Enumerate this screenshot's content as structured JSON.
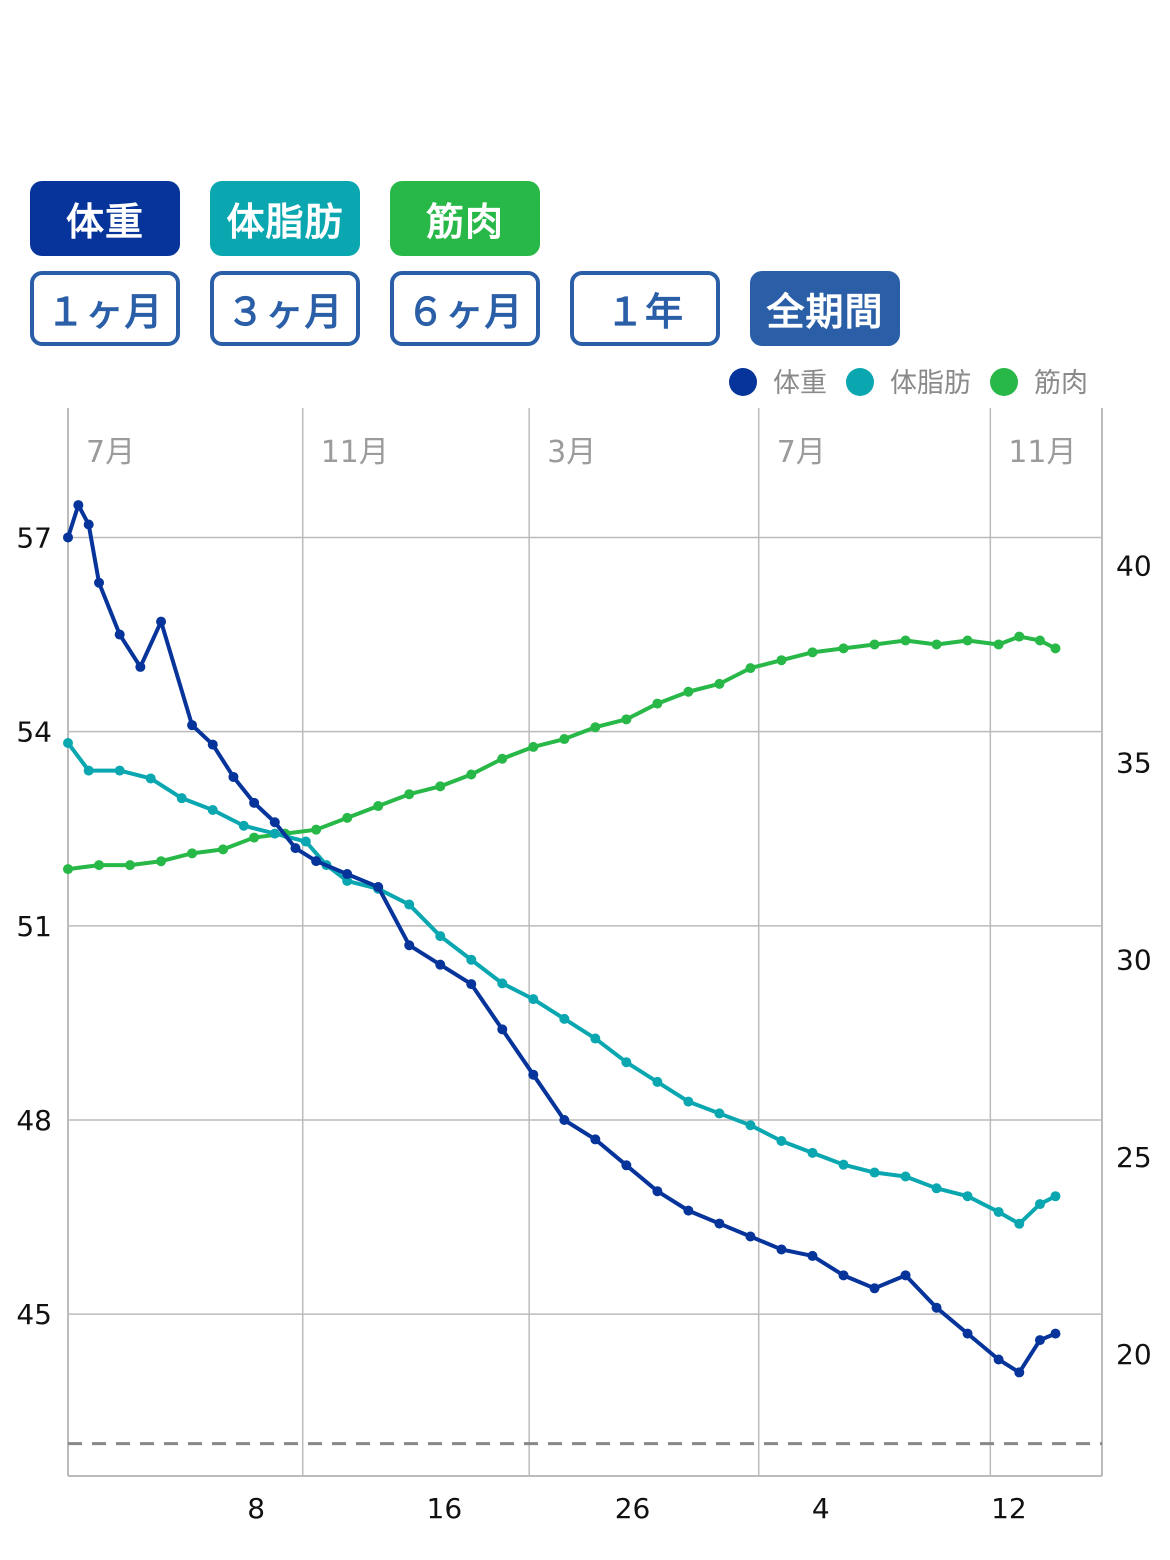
{
  "series_buttons": [
    {
      "label": "体重",
      "color": "#06349a"
    },
    {
      "label": "体脂肪",
      "color": "#0aa7b0"
    },
    {
      "label": "筋肉",
      "color": "#27b848"
    }
  ],
  "period_buttons": [
    {
      "label": "１ヶ月",
      "selected": false
    },
    {
      "label": "３ヶ月",
      "selected": false
    },
    {
      "label": "６ヶ月",
      "selected": false
    },
    {
      "label": "１年",
      "selected": false
    },
    {
      "label": "全期間",
      "selected": true
    }
  ],
  "colors": {
    "accent": "#2a5fa8",
    "weight": "#06349a",
    "fat": "#0aa7b0",
    "muscle": "#27b848",
    "target_line": "#888888"
  },
  "chart_data": {
    "type": "line",
    "legend": [
      "体重",
      "体脂肪",
      "筋肉"
    ],
    "legend_position": "top-right",
    "grid": true,
    "month_labels": [
      "7月",
      "11月",
      "3月",
      "7月",
      "11月"
    ],
    "x_tick_labels": [
      "8",
      "16",
      "26",
      "4",
      "12"
    ],
    "x_range": [
      0,
      100
    ],
    "month_positions": [
      0,
      22.7,
      44.6,
      66.8,
      89.2
    ],
    "x_tick_positions": [
      18.2,
      36.4,
      54.6,
      72.8,
      91.0
    ],
    "y_left": {
      "ticks": [
        45,
        48,
        51,
        54,
        57
      ],
      "range": [
        42.5,
        59.0
      ]
    },
    "y_right": {
      "ticks": [
        20,
        25,
        30,
        35,
        40
      ],
      "range": [
        16.9,
        44.0
      ]
    },
    "target_weight": 43.0,
    "series": [
      {
        "name": "体重",
        "axis": "left",
        "color": "#06349a",
        "x": [
          0,
          1,
          2,
          3,
          5,
          7,
          9,
          12,
          14,
          16,
          18,
          20,
          22,
          24,
          27,
          30,
          33,
          36,
          39,
          42,
          45,
          48,
          51,
          54,
          57,
          60,
          63,
          66,
          69,
          72,
          75,
          78,
          81,
          84,
          87,
          90,
          92,
          94,
          95.5
        ],
        "values": [
          57.0,
          57.5,
          57.2,
          56.3,
          55.5,
          55.0,
          55.7,
          54.1,
          53.8,
          53.3,
          52.9,
          52.6,
          52.2,
          52.0,
          51.8,
          51.6,
          50.7,
          50.4,
          50.1,
          49.4,
          48.7,
          48.0,
          47.7,
          47.3,
          46.9,
          46.6,
          46.4,
          46.2,
          46.0,
          45.9,
          45.6,
          45.4,
          45.6,
          45.1,
          44.7,
          44.3,
          44.1,
          44.6,
          44.7
        ]
      },
      {
        "name": "体脂肪",
        "axis": "right",
        "color": "#0aa7b0",
        "x": [
          0,
          2,
          5,
          8,
          11,
          14,
          17,
          20,
          23,
          25,
          27,
          30,
          33,
          36,
          39,
          42,
          45,
          48,
          51,
          54,
          57,
          60,
          63,
          66,
          69,
          72,
          75,
          78,
          81,
          84,
          87,
          90,
          92,
          94,
          95.5
        ],
        "values": [
          35.5,
          34.8,
          34.8,
          34.6,
          34.1,
          33.8,
          33.4,
          33.2,
          33.0,
          32.4,
          32.0,
          31.8,
          31.4,
          30.6,
          30.0,
          29.4,
          29.0,
          28.5,
          28.0,
          27.4,
          26.9,
          26.4,
          26.1,
          25.8,
          25.4,
          25.1,
          24.8,
          24.6,
          24.5,
          24.2,
          24.0,
          23.6,
          23.3,
          23.8,
          24.0
        ]
      },
      {
        "name": "筋肉",
        "axis": "right",
        "color": "#27b848",
        "x": [
          0,
          3,
          6,
          9,
          12,
          15,
          18,
          21,
          24,
          27,
          30,
          33,
          36,
          39,
          42,
          45,
          48,
          51,
          54,
          57,
          60,
          63,
          66,
          69,
          72,
          75,
          78,
          81,
          84,
          87,
          90,
          92,
          94,
          95.5
        ],
        "values": [
          32.3,
          32.4,
          32.4,
          32.5,
          32.7,
          32.8,
          33.1,
          33.2,
          33.3,
          33.6,
          33.9,
          34.2,
          34.4,
          34.7,
          35.1,
          35.4,
          35.6,
          35.9,
          36.1,
          36.5,
          36.8,
          37.0,
          37.4,
          37.6,
          37.8,
          37.9,
          38.0,
          38.1,
          38.0,
          38.1,
          38.0,
          38.2,
          38.1,
          37.9
        ]
      }
    ]
  }
}
